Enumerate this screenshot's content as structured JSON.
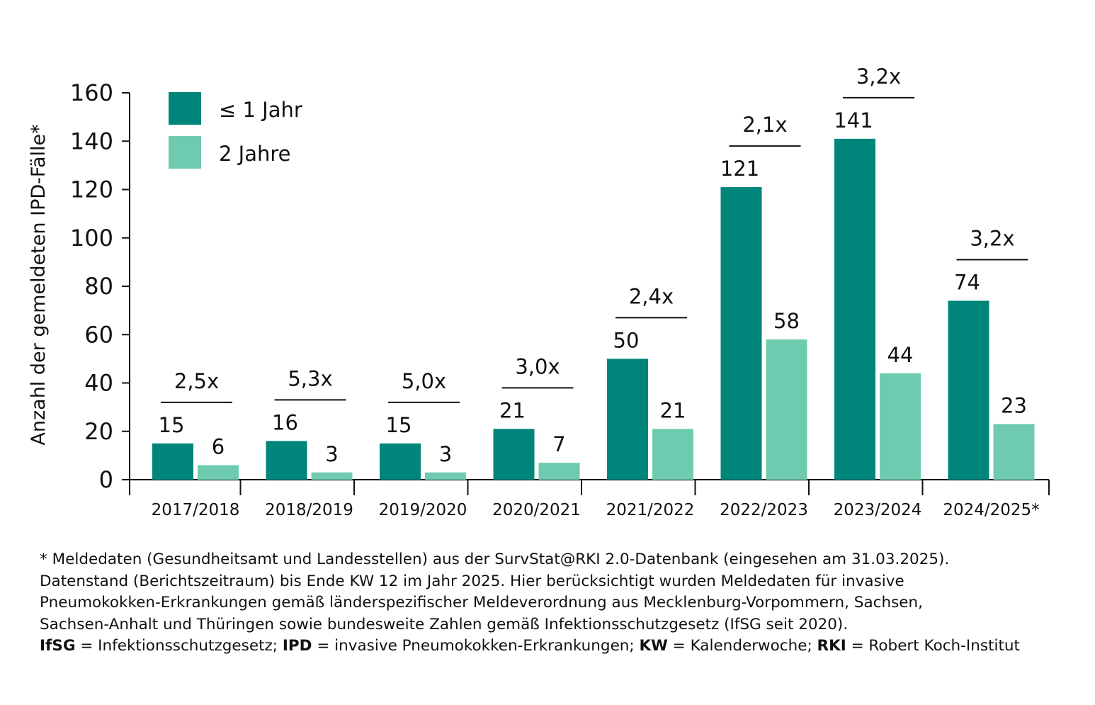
{
  "chart_data": {
    "type": "bar",
    "title": "",
    "xlabel": "",
    "ylabel": "Anzahl der gemeldeten IPD-Fälle*",
    "ylim": [
      0,
      160
    ],
    "yticks": [
      0,
      20,
      40,
      60,
      80,
      100,
      120,
      140,
      160
    ],
    "grid": false,
    "legend_position": "top-left",
    "categories": [
      "2017/2018",
      "2018/2019",
      "2019/2020",
      "2020/2021",
      "2021/2022",
      "2022/2023",
      "2023/2024",
      "2024/2025*"
    ],
    "series": [
      {
        "name": "≤ 1 Jahr",
        "color": "#00857b",
        "values": [
          15,
          16,
          15,
          21,
          50,
          121,
          141,
          74
        ]
      },
      {
        "name": "2 Jahre",
        "color": "#6fcbb0",
        "values": [
          6,
          3,
          3,
          7,
          21,
          58,
          44,
          23
        ]
      }
    ],
    "ratio_annotations": [
      "2,5x",
      "5,3x",
      "5,0x",
      "3,0x",
      "2,4x",
      "2,1x",
      "3,2x",
      "3,2x"
    ]
  },
  "footnote": {
    "lines": [
      "* Meldedaten (Gesundheitsamt und Landesstellen) aus der SurvStat@RKI 2.0-Datenbank  (eingesehen am 31.03.2025).",
      "Datenstand (Berichtszeitraum) bis Ende KW 12 im Jahr 2025.  Hier berücksichtigt wurden Meldedaten für invasive",
      "Pneumokokken-Erkrankungen gemäß länderspezifischer Meldeverordnung aus Mecklenburg-Vorpommern, Sachsen,",
      "Sachsen-Anhalt und Thüringen sowie bundesweite Zahlen gemäß  Infektionsschutzgesetz (IfSG seit 2020)."
    ],
    "abbreviations": [
      {
        "term": "IfSG",
        "text": " = Infektionsschutzgesetz; "
      },
      {
        "term": "IPD",
        "text": " = invasive Pneumokokken-Erkrankungen; "
      },
      {
        "term": "KW",
        "text": " = Kalenderwoche; "
      },
      {
        "term": "RKI",
        "text": " = Robert Koch-Institut"
      }
    ]
  }
}
